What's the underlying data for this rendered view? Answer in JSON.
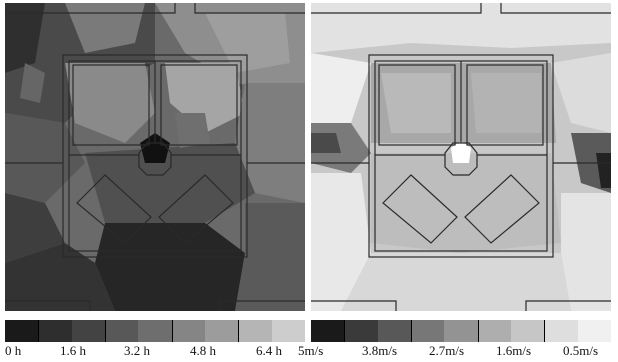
{
  "left_panel": {
    "legend": {
      "swatch_colors": [
        "#1a1a1a",
        "#2e2e2e",
        "#434343",
        "#585858",
        "#6e6e6e",
        "#858585",
        "#9c9c9c",
        "#b5b5b5",
        "#cdcdcd"
      ],
      "tick_labels": [
        "0 h",
        "1.6 h",
        "3.2 h",
        "4.8 h",
        "6.4 h"
      ]
    }
  },
  "right_panel": {
    "legend": {
      "swatch_colors": [
        "#1a1a1a",
        "#3a3a3a",
        "#585858",
        "#777777",
        "#939393",
        "#aeaeae",
        "#c6c6c6",
        "#dedede",
        "#f0f0f0"
      ],
      "tick_labels": [
        "5m/s",
        "3.8m/s",
        "2.7m/s",
        "1.6m/s",
        "0.5m/s"
      ]
    }
  }
}
